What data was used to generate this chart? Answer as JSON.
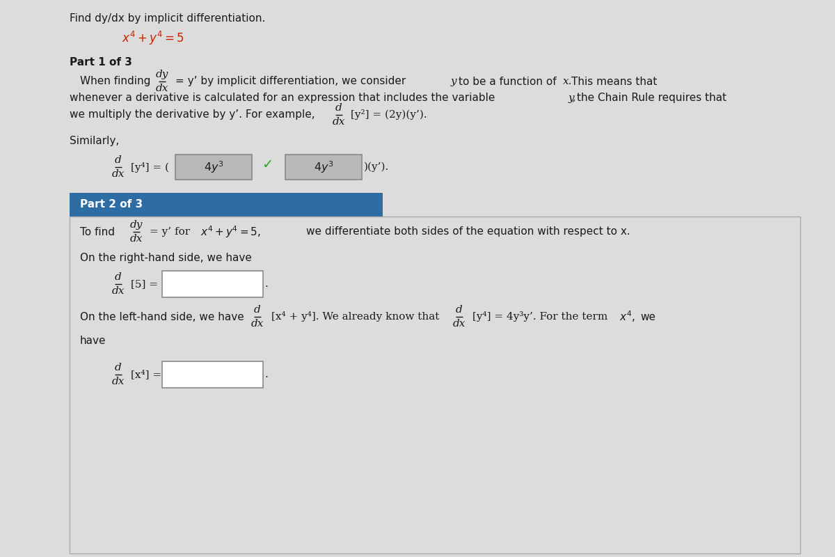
{
  "bg_color": "#dcdcdc",
  "title_text": "Find dy/dx by implicit differentiation.",
  "equation": "$x^4 + y^4 = 5$",
  "part1_label": "Part 1 of 3",
  "part2_label": "Part 2 of 3",
  "part2_header_bg": "#2e6da4",
  "part2_header_fg": "#ffffff",
  "part2_border": "#aaaaaa",
  "text_color": "#1a1a1a",
  "red_color": "#cc2200",
  "green_color": "#22aa22",
  "input_box_border": "#888888",
  "filled_box_color": "#b8b8b8",
  "white": "#ffffff",
  "fs_base": 11.0,
  "fs_math": 11.0,
  "fs_title": 11.0,
  "fs_part": 10.5
}
